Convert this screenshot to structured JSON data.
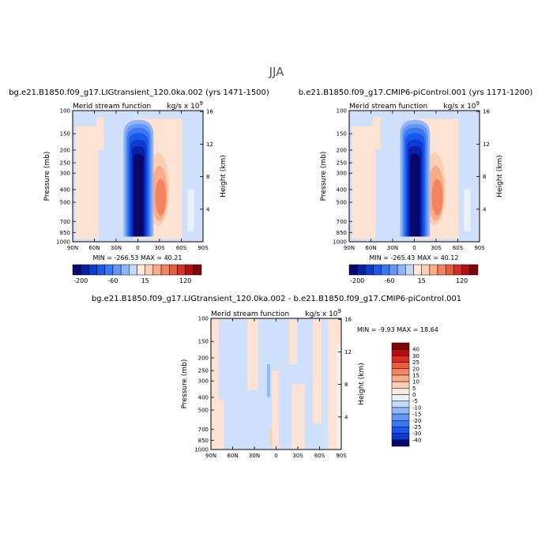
{
  "title": "JJA",
  "colors": {
    "palette": [
      "#08086b",
      "#0a1fa8",
      "#0d3bd1",
      "#1858ec",
      "#3a78f2",
      "#6396f5",
      "#91b6f8",
      "#c3d8fb",
      "#eaf2fc",
      "#fde8dc",
      "#fbcfb3",
      "#f9ac88",
      "#f48461",
      "#ee5a3d",
      "#dd2d23",
      "#b30f12",
      "#7d0609"
    ],
    "zero_neg": "#cfe0fa",
    "zero_pos": "#fde3d3"
  },
  "chart_data": [
    {
      "type": "heatmap",
      "panel": "lig",
      "title": "bg.e21.B1850.f09_g17.LIGtransient_120.0ka.002 (yrs 1471-1500)",
      "subtitle_left": "Merid  stream  function",
      "units": "kg/s x 10",
      "units_exp": "9",
      "ylabel": "Pressure  (mb)",
      "ylabel_right": "Height  (km)",
      "x_ticks": [
        "90N",
        "60N",
        "30N",
        "0",
        "30S",
        "60S",
        "90S"
      ],
      "y_ticks": [
        "100",
        "150",
        "200",
        "250",
        "300",
        "400",
        "500",
        "700",
        "850",
        "1000"
      ],
      "height_ticks": [
        "16",
        "12",
        "8",
        "4"
      ],
      "minmax_text": "MIN = -266.53   MAX =  40.21",
      "min": -266.53,
      "max": 40.21,
      "colorbar_labels": [
        "-200",
        "-60",
        "15",
        "120"
      ]
    },
    {
      "type": "heatmap",
      "panel": "pi",
      "title": "b.e21.B1850.f09_g17.CMIP6-piControl.001 (yrs 1171-1200)",
      "subtitle_left": "Merid  stream  function",
      "units": "kg/s x 10",
      "units_exp": "9",
      "ylabel": "Pressure  (mb)",
      "ylabel_right": "Height  (km)",
      "x_ticks": [
        "90N",
        "60N",
        "30N",
        "0",
        "30S",
        "60S",
        "90S"
      ],
      "y_ticks": [
        "100",
        "150",
        "200",
        "250",
        "300",
        "400",
        "500",
        "700",
        "850",
        "1000"
      ],
      "height_ticks": [
        "16",
        "12",
        "8",
        "4"
      ],
      "minmax_text": "MIN = -265.43   MAX =  40.12",
      "min": -265.43,
      "max": 40.12,
      "colorbar_labels": [
        "-200",
        "-60",
        "15",
        "120"
      ]
    },
    {
      "type": "heatmap",
      "panel": "diff",
      "title": "bg.e21.B1850.f09_g17.LIGtransient_120.0ka.002 - b.e21.B1850.f09_g17.CMIP6-piControl.001",
      "subtitle_left": "Merid  stream  function",
      "units": "kg/s x 10",
      "units_exp": "9",
      "ylabel": "Pressure  (mb)",
      "ylabel_right": "Height  (km)",
      "x_ticks": [
        "90N",
        "60N",
        "30N",
        "0",
        "30S",
        "60S",
        "90S"
      ],
      "y_ticks": [
        "100",
        "150",
        "200",
        "250",
        "300",
        "400",
        "500",
        "700",
        "850",
        "1000"
      ],
      "height_ticks": [
        "16",
        "12",
        "8",
        "4"
      ],
      "minmax_text": "MIN =  -9.93   MAX =  18.64",
      "min": -9.93,
      "max": 18.64,
      "colorbar_labels": [
        "40",
        "30",
        "25",
        "20",
        "15",
        "10",
        "5",
        "0",
        "-5",
        "-10",
        "-15",
        "-20",
        "-25",
        "-30",
        "-40"
      ]
    }
  ]
}
